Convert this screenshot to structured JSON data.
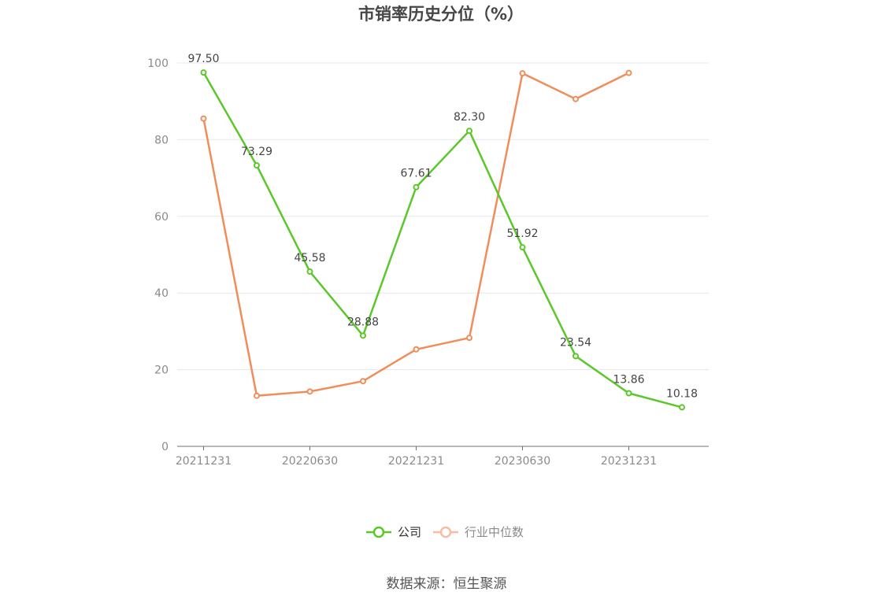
{
  "chart_data": {
    "type": "line",
    "title": "市销率历史分位（%）",
    "xlabel": "",
    "ylabel": "",
    "ylim": [
      0,
      100
    ],
    "yticks": [
      0,
      20,
      40,
      60,
      80,
      100
    ],
    "x": [
      "20211231",
      "20220331",
      "20220630",
      "20220930",
      "20221231",
      "20230331",
      "20230630",
      "20230930",
      "20231231",
      "20240331"
    ],
    "xtick_labels": [
      "20211231",
      "20220630",
      "20221231",
      "20230630",
      "20231231"
    ],
    "series": [
      {
        "name": "公司",
        "color": "#5cc72a",
        "values": [
          97.5,
          73.29,
          45.58,
          28.88,
          67.61,
          82.3,
          51.92,
          23.54,
          13.86,
          10.18
        ],
        "labels": [
          "97.50",
          "73.29",
          "45.58",
          "28.88",
          "67.61",
          "82.30",
          "51.92",
          "23.54",
          "13.86",
          "10.18"
        ]
      },
      {
        "name": "行业中位数",
        "color": "#f08d5b",
        "values": [
          85.5,
          13.2,
          14.3,
          17.0,
          25.3,
          28.3,
          97.3,
          90.6,
          97.4,
          null
        ]
      }
    ],
    "legend": {
      "position": "bottom-center"
    },
    "grid": true,
    "source": "数据来源：恒生聚源"
  }
}
